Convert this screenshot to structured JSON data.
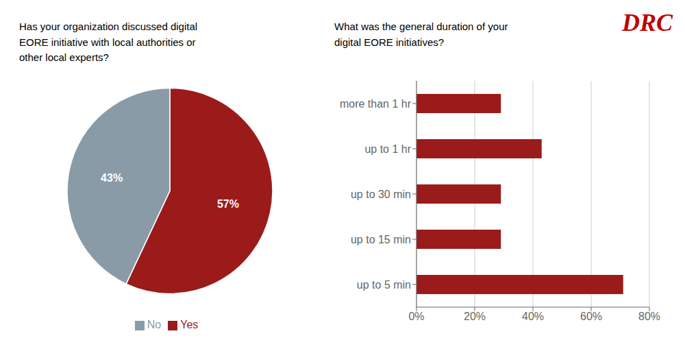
{
  "chart_data": [
    {
      "type": "pie",
      "title": "Has your organization discussed digital\nEORE initiative with local authorities or\nother local experts?",
      "categories": [
        "Yes",
        "No"
      ],
      "values": [
        57,
        43
      ],
      "value_labels": [
        "57%",
        "43%"
      ],
      "colors": [
        "#9b1b1b",
        "#8a9ba8"
      ],
      "data_labels": true,
      "legend": "bottom"
    },
    {
      "type": "bar",
      "title": "What was the general duration of your\ndigital EORE initiatives?",
      "orientation": "horizontal",
      "categories": [
        "more than 1 hr",
        "up to 1 hr",
        "up to 30 min",
        "up to 15 min",
        "up to 5 min"
      ],
      "values": [
        29,
        43,
        29,
        29,
        71
      ],
      "color": "#9b1b1b",
      "xlim": [
        0,
        80
      ],
      "xticks": [
        {
          "value": 0,
          "label": "0%"
        },
        {
          "value": 20,
          "label": "20%"
        },
        {
          "value": 40,
          "label": "40%"
        },
        {
          "value": 60,
          "label": "60%"
        },
        {
          "value": 80,
          "label": "80%"
        }
      ],
      "grid": true,
      "annotations": [
        {
          "text": "DRC",
          "color": "#c00000"
        }
      ]
    }
  ]
}
